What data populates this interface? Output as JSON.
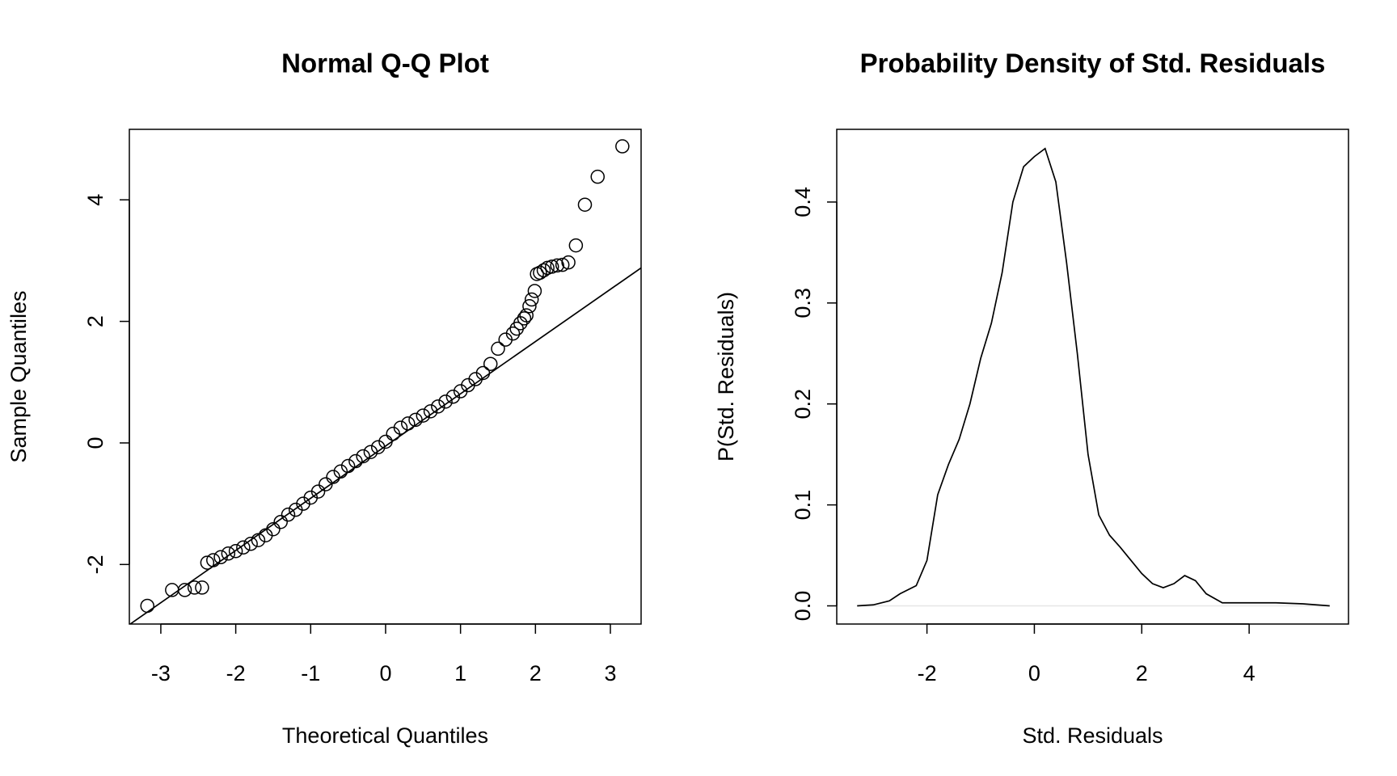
{
  "chart_data": [
    {
      "type": "scatter",
      "title": "Normal Q-Q Plot",
      "x_label": "Theoretical Quantiles",
      "y_label": "Sample Quantiles",
      "xlim": [
        -3.42,
        3.41
      ],
      "ylim": [
        -2.98,
        5.16
      ],
      "xticks": [
        -3,
        -2,
        -1,
        0,
        1,
        2,
        3
      ],
      "yticks": [
        -2,
        0,
        2,
        4
      ],
      "series": [
        {
          "style": "points",
          "color": "#000000",
          "x": [
            -3.18,
            -2.85,
            -2.68,
            -2.55,
            -2.45,
            -2.38,
            -2.3,
            -2.2,
            -2.1,
            -2.0,
            -1.9,
            -1.8,
            -1.7,
            -1.6,
            -1.5,
            -1.4,
            -1.3,
            -1.2,
            -1.1,
            -1.0,
            -0.9,
            -0.8,
            -0.7,
            -0.6,
            -0.5,
            -0.4,
            -0.3,
            -0.2,
            -0.1,
            0.0,
            0.1,
            0.2,
            0.3,
            0.4,
            0.5,
            0.6,
            0.7,
            0.8,
            0.9,
            1.0,
            1.1,
            1.2,
            1.3,
            1.4,
            1.5,
            1.6,
            1.7,
            1.75,
            1.8,
            1.85,
            1.88,
            1.92,
            1.95,
            1.99,
            2.02,
            2.06,
            2.11,
            2.16,
            2.22,
            2.29,
            2.36,
            2.44,
            2.54,
            2.66,
            2.83,
            3.16
          ],
          "values": [
            -2.68,
            -2.42,
            -2.42,
            -2.38,
            -2.38,
            -1.97,
            -1.93,
            -1.88,
            -1.82,
            -1.78,
            -1.72,
            -1.66,
            -1.6,
            -1.52,
            -1.42,
            -1.3,
            -1.18,
            -1.1,
            -1.0,
            -0.9,
            -0.8,
            -0.68,
            -0.56,
            -0.47,
            -0.38,
            -0.3,
            -0.22,
            -0.15,
            -0.07,
            0.02,
            0.15,
            0.25,
            0.32,
            0.38,
            0.45,
            0.52,
            0.6,
            0.68,
            0.76,
            0.85,
            0.95,
            1.05,
            1.15,
            1.3,
            1.55,
            1.7,
            1.8,
            1.88,
            1.97,
            2.05,
            2.1,
            2.25,
            2.36,
            2.5,
            2.78,
            2.8,
            2.84,
            2.88,
            2.9,
            2.92,
            2.93,
            2.97,
            3.25,
            3.92,
            4.38,
            4.88
          ]
        },
        {
          "style": "line",
          "color": "#000000",
          "x": [
            -3.42,
            3.41
          ],
          "values": [
            -2.99,
            2.88
          ]
        }
      ]
    },
    {
      "type": "line",
      "title": "Probability Density of Std. Residuals",
      "x_label": "Std. Residuals",
      "y_label": "P(Std. Residuals)",
      "xlim": [
        -3.68,
        5.85
      ],
      "ylim": [
        -0.018,
        0.472
      ],
      "xticks": [
        -2,
        0,
        2,
        4
      ],
      "yticks": [
        {
          "value": 0,
          "label": "0.0"
        },
        0.1,
        0.2,
        0.3,
        0.4
      ],
      "hline": 0,
      "hline_color": "#e6e6e6",
      "series": [
        {
          "style": "line",
          "color": "#000000",
          "x": [
            -3.3,
            -3.0,
            -2.7,
            -2.5,
            -2.2,
            -2.0,
            -1.8,
            -1.6,
            -1.4,
            -1.2,
            -1.0,
            -0.8,
            -0.6,
            -0.4,
            -0.2,
            0.0,
            0.2,
            0.4,
            0.6,
            0.8,
            1.0,
            1.2,
            1.4,
            1.6,
            1.8,
            2.0,
            2.2,
            2.4,
            2.6,
            2.8,
            3.0,
            3.2,
            3.5,
            4.0,
            4.5,
            5.0,
            5.5
          ],
          "values": [
            0.0,
            0.001,
            0.005,
            0.012,
            0.02,
            0.045,
            0.11,
            0.14,
            0.165,
            0.2,
            0.245,
            0.28,
            0.33,
            0.4,
            0.435,
            0.445,
            0.453,
            0.42,
            0.34,
            0.25,
            0.15,
            0.09,
            0.07,
            0.058,
            0.045,
            0.032,
            0.022,
            0.018,
            0.022,
            0.03,
            0.025,
            0.012,
            0.003,
            0.003,
            0.003,
            0.002,
            0.0
          ]
        }
      ]
    }
  ]
}
